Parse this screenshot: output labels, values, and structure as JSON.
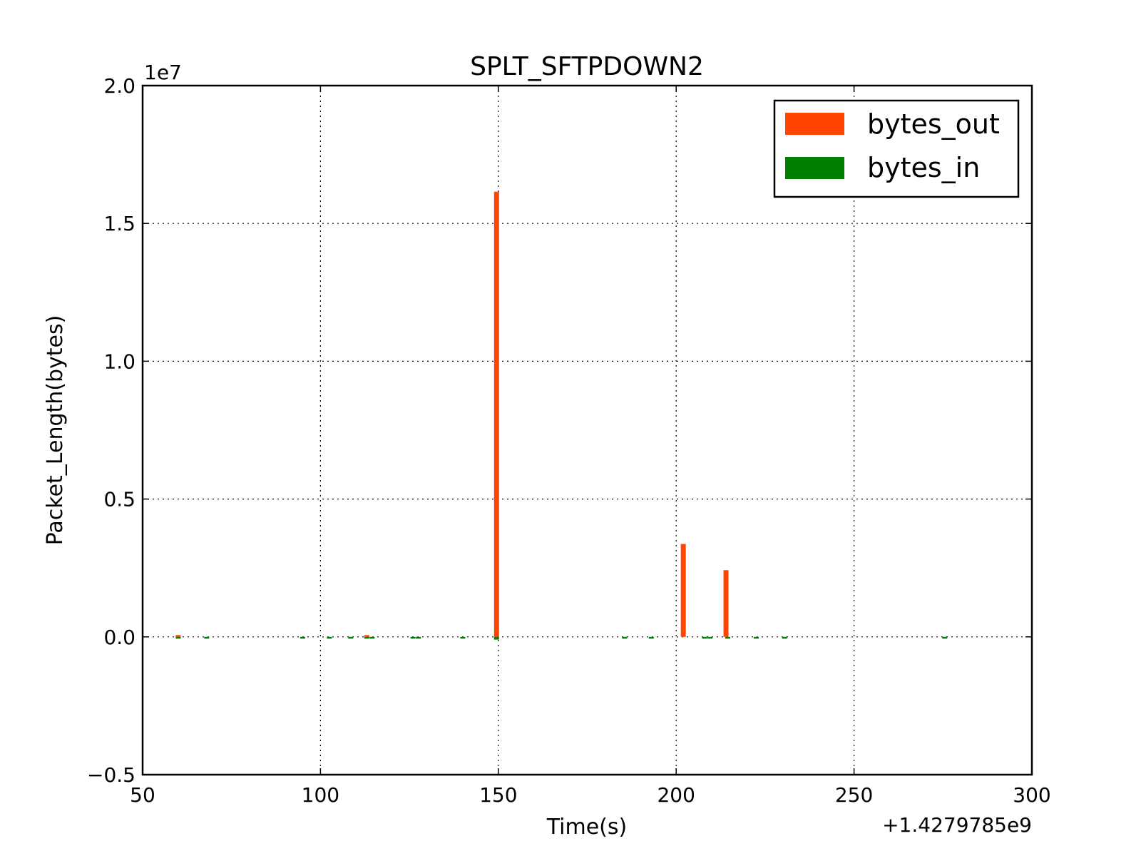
{
  "chart_data": {
    "type": "bar",
    "title": "SPLT_SFTPDOWN2",
    "xlabel": "Time(s)",
    "ylabel": "Packet_Length(bytes)",
    "x_offset_label": "+1.4279785e9",
    "y_scale_label": "1e7",
    "xlim": [
      50,
      300
    ],
    "ylim": [
      -5000000,
      20000000
    ],
    "x_ticks": [
      50,
      100,
      150,
      200,
      250,
      300
    ],
    "x_tick_labels": [
      "50",
      "100",
      "150",
      "200",
      "250",
      "300"
    ],
    "y_ticks": [
      -5000000,
      0,
      5000000,
      10000000,
      15000000,
      20000000
    ],
    "y_tick_labels": [
      "−0.5",
      "0.0",
      "0.5",
      "1.0",
      "1.5",
      "2.0"
    ],
    "grid": true,
    "legend_position": "top-right",
    "series": [
      {
        "name": "bytes_out",
        "color": "#ff4500",
        "points": [
          {
            "x": 60,
            "y": 1500
          },
          {
            "x": 113,
            "y": 3000
          },
          {
            "x": 149.5,
            "y": 16150000
          },
          {
            "x": 202,
            "y": 3370000
          },
          {
            "x": 214,
            "y": 2420000
          }
        ]
      },
      {
        "name": "bytes_in",
        "color": "#008000",
        "points": [
          {
            "x": 60,
            "y": -40000
          },
          {
            "x": 68,
            "y": -30000
          },
          {
            "x": 95,
            "y": -30000
          },
          {
            "x": 102.5,
            "y": -30000
          },
          {
            "x": 108.5,
            "y": -30000
          },
          {
            "x": 113,
            "y": -40000
          },
          {
            "x": 114.5,
            "y": -40000
          },
          {
            "x": 126,
            "y": -40000
          },
          {
            "x": 127.5,
            "y": -30000
          },
          {
            "x": 140,
            "y": -30000
          },
          {
            "x": 149.5,
            "y": -100000
          },
          {
            "x": 185.5,
            "y": -30000
          },
          {
            "x": 193,
            "y": -30000
          },
          {
            "x": 208,
            "y": -40000
          },
          {
            "x": 209.5,
            "y": -40000
          },
          {
            "x": 214.5,
            "y": -60000
          },
          {
            "x": 222.5,
            "y": -40000
          },
          {
            "x": 230.5,
            "y": -40000
          },
          {
            "x": 275.5,
            "y": -40000
          }
        ]
      }
    ]
  }
}
